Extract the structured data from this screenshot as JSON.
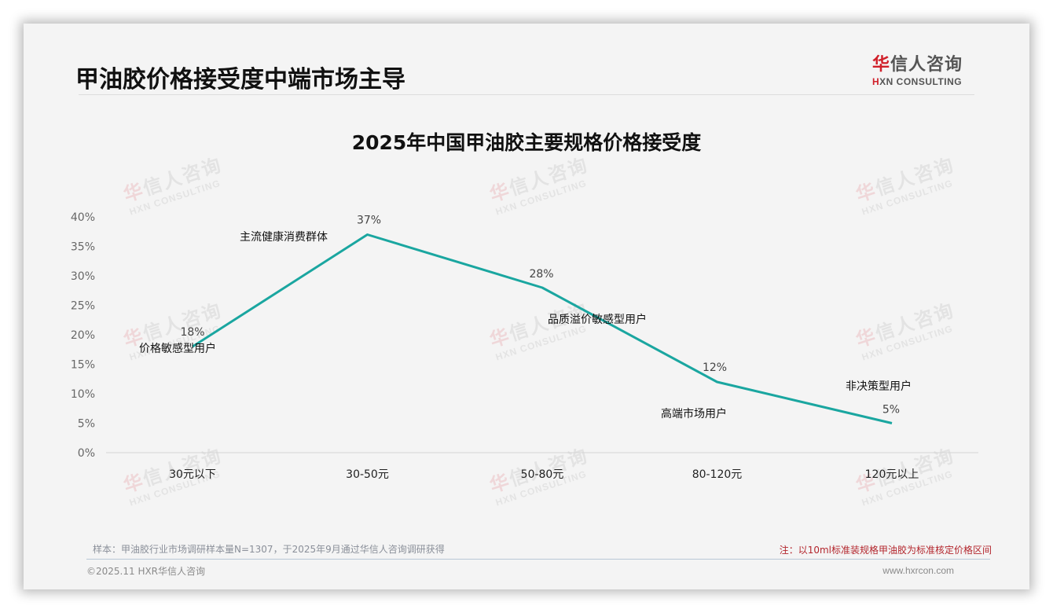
{
  "header": {
    "page_title": "甲油胶价格接受度中端市场主导",
    "logo": {
      "cn_first": "华",
      "cn_rest": "信人咨询",
      "en_first": "H",
      "en_rest": "XN CONSULTING"
    }
  },
  "watermark": {
    "cn_first": "华",
    "cn_rest": "信人咨询",
    "en": "HXN CONSULTING"
  },
  "colors": {
    "line": "#1aa6a0",
    "note_red": "#b3262d",
    "brand_red": "#d0202a"
  },
  "chart_data": {
    "type": "line",
    "title": "2025年中国甲油胶主要规格价格接受度",
    "xlabel": "",
    "ylabel": "",
    "categories": [
      "30元以下",
      "30-50元",
      "50-80元",
      "80-120元",
      "120元以上"
    ],
    "series": [
      {
        "name": "价格接受度",
        "values": [
          18,
          37,
          28,
          12,
          5
        ],
        "unit": "%"
      }
    ],
    "value_labels": [
      "18%",
      "37%",
      "28%",
      "12%",
      "5%"
    ],
    "annotations": [
      "价格敏感型用户",
      "主流健康消费群体",
      "品质溢价敏感型用户",
      "高端市场用户",
      "非决策型用户"
    ],
    "y_ticks": [
      "0%",
      "5%",
      "10%",
      "15%",
      "20%",
      "25%",
      "30%",
      "35%",
      "40%"
    ],
    "ylim": [
      0,
      40
    ],
    "grid": false,
    "legend": "none"
  },
  "footer": {
    "sample": "样本：甲油胶行业市场调研样本量N=1307，于2025年9月通过华信人咨询调研获得",
    "note": "注：以10ml标准装规格甲油胶为标准核定价格区间",
    "copyright": "©2025.11 HXR华信人咨询",
    "website": "www.hxrcon.com"
  }
}
